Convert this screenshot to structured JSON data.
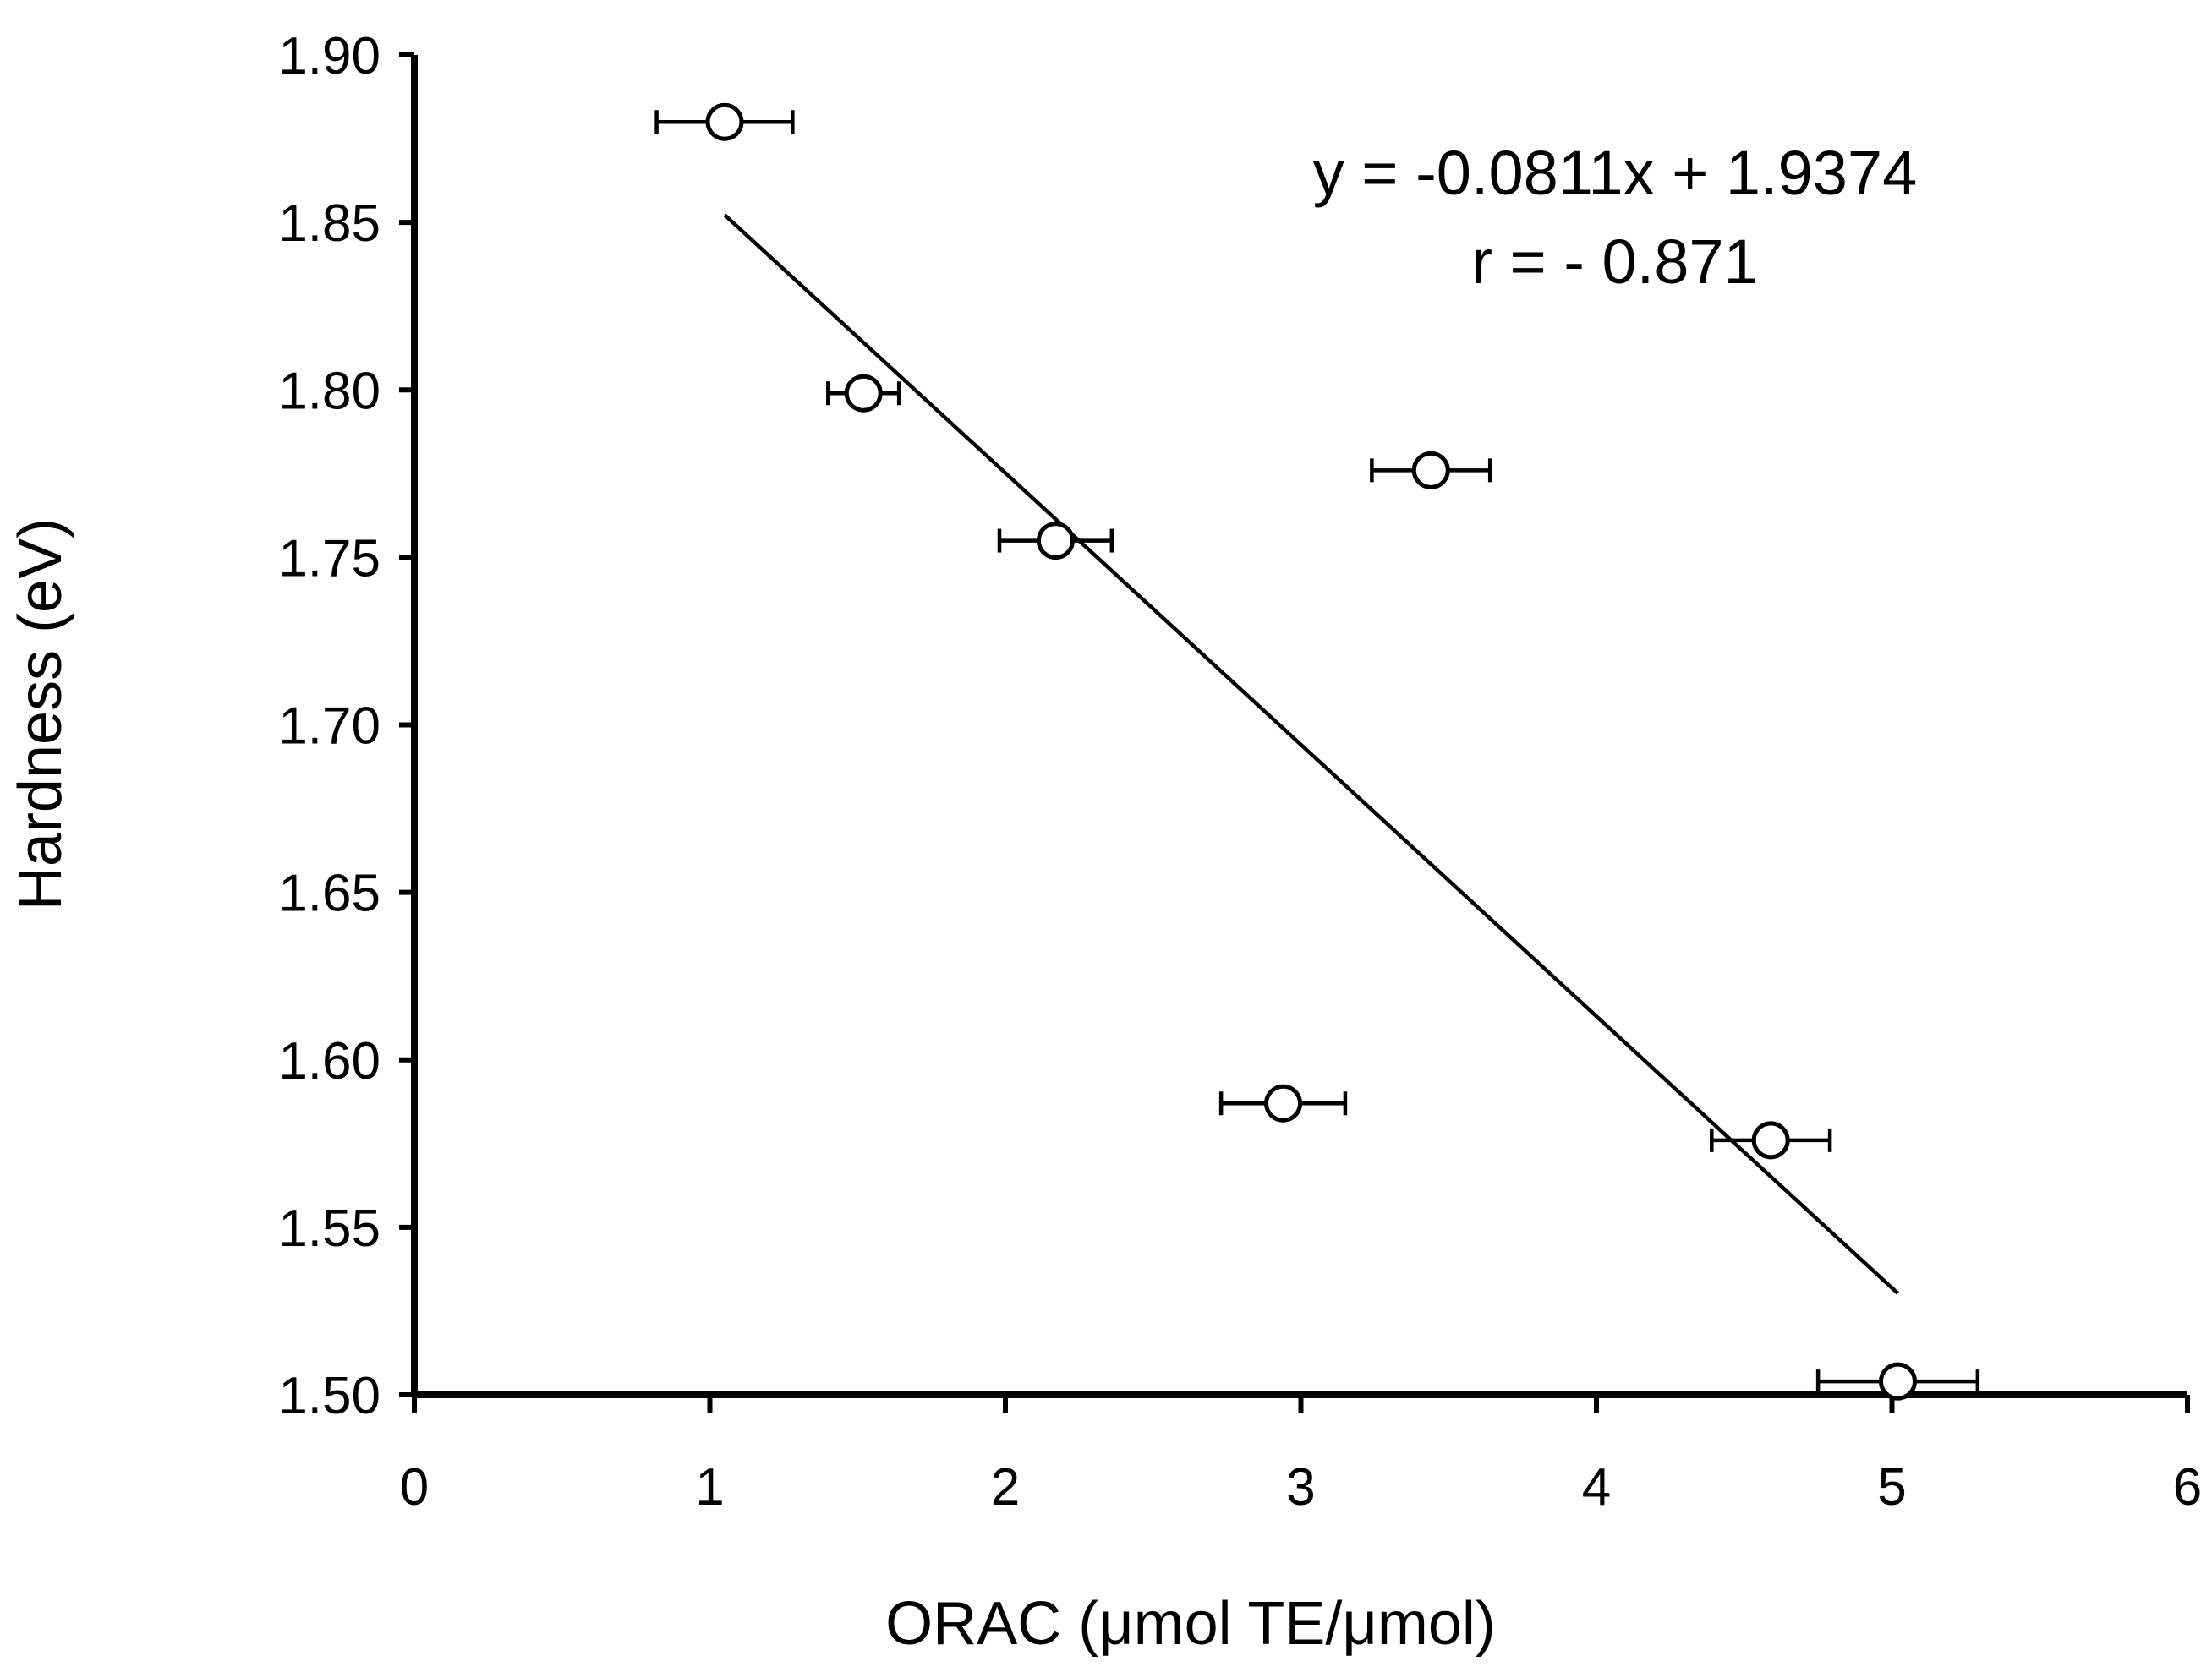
{
  "chart_data": {
    "type": "scatter",
    "title": "",
    "xlabel": "ORAC (μmol TE/μmol)",
    "ylabel": "Hardness (eV)",
    "xlim": [
      0,
      6
    ],
    "ylim": [
      1.5,
      1.9
    ],
    "x_ticks": [
      "0",
      "1",
      "2",
      "3",
      "4",
      "5",
      "6"
    ],
    "y_ticks": [
      "1.50",
      "1.55",
      "1.60",
      "1.65",
      "1.70",
      "1.75",
      "1.80",
      "1.85",
      "1.90"
    ],
    "grid": false,
    "legend": "none",
    "points": [
      {
        "x": 1.05,
        "y": 1.88,
        "xerr": 0.23
      },
      {
        "x": 1.52,
        "y": 1.799,
        "xerr": 0.12
      },
      {
        "x": 2.17,
        "y": 1.755,
        "xerr": 0.19
      },
      {
        "x": 2.94,
        "y": 1.587,
        "xerr": 0.21
      },
      {
        "x": 3.44,
        "y": 1.776,
        "xerr": 0.2
      },
      {
        "x": 4.59,
        "y": 1.576,
        "xerr": 0.2
      },
      {
        "x": 5.02,
        "y": 1.504,
        "xerr": 0.27
      }
    ],
    "fit": {
      "slope": -0.0811,
      "intercept": 1.9374,
      "x_range": [
        1.05,
        5.02
      ]
    },
    "annotations": [
      "y = -0.0811x + 1.9374",
      "r = - 0.871"
    ]
  }
}
